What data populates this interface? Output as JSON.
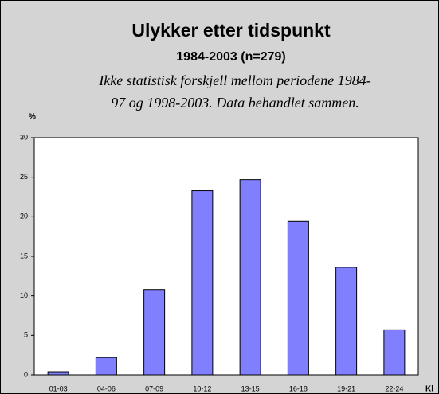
{
  "chart_data": {
    "type": "bar",
    "title": "Ulykker etter tidspunkt",
    "subtitle": "1984-2003 (n=279)",
    "annotation": [
      "Ikke statistisk forskjell mellom periodene 1984-",
      "97 og 1998-2003. Data behandlet sammen."
    ],
    "y_label": "%",
    "x_label": "Kl",
    "categories": [
      "01-03",
      "04-06",
      "07-09",
      "10-12",
      "13-15",
      "16-18",
      "19-21",
      "22-24"
    ],
    "values": [
      0.4,
      2.2,
      10.8,
      23.3,
      24.7,
      19.4,
      13.6,
      5.7
    ],
    "color": "#8080ff",
    "ylim": [
      0,
      30
    ],
    "yticks": [
      0,
      5,
      10,
      15,
      20,
      25,
      30
    ],
    "grid": false
  }
}
